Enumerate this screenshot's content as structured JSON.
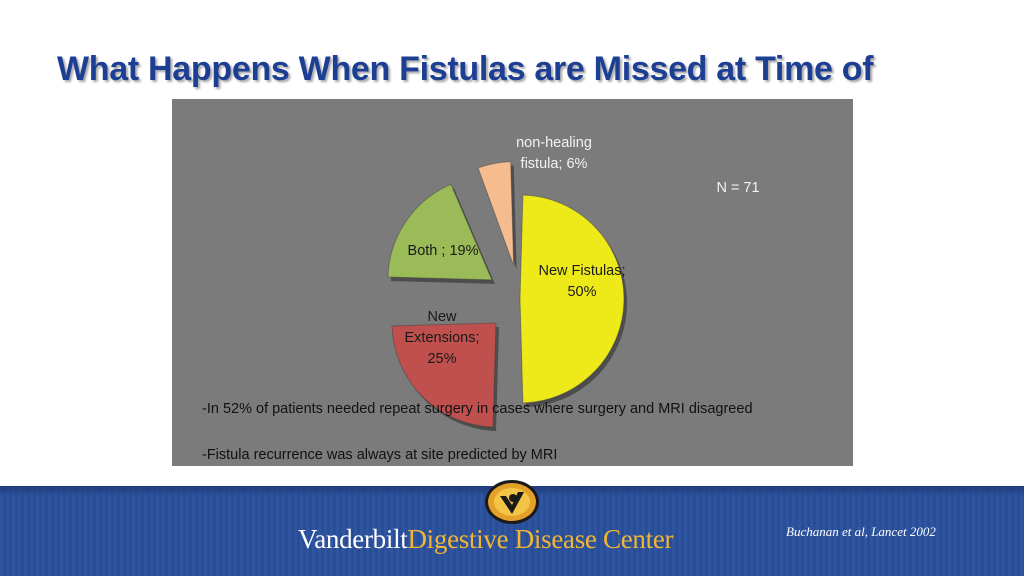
{
  "slide": {
    "title": "What Happens When Fistulas are Missed at Time of",
    "bullets": [
      "-In 52% of patients  needed repeat surgery in cases where surgery and MRI disagreed",
      "-Fistula recurrence was always at site predicted by MRI"
    ]
  },
  "chart_data": {
    "type": "pie",
    "exploded": true,
    "annotation": "N = 71",
    "slices": [
      {
        "label_lines": [
          "New Fistulas;",
          "50%"
        ],
        "category": "New Fistulas",
        "value": 50,
        "color": "#eeea1a"
      },
      {
        "label_lines": [
          "New",
          "Extensions;",
          "25%"
        ],
        "category": "New Extensions",
        "value": 25,
        "color": "#c0504d"
      },
      {
        "label_lines": [
          "Both ; 19%"
        ],
        "category": "Both",
        "value": 19,
        "color": "#9bbb59"
      },
      {
        "label_lines": [
          "non-healing",
          "fistula; 6%"
        ],
        "category": "non-healing fistula",
        "value": 6,
        "color": "#f5bc8f"
      }
    ]
  },
  "footer": {
    "org_word1": "Vanderbilt",
    "org_word2": "Digestive Disease Center",
    "citation": "Buchanan et al, Lancet 2002"
  }
}
